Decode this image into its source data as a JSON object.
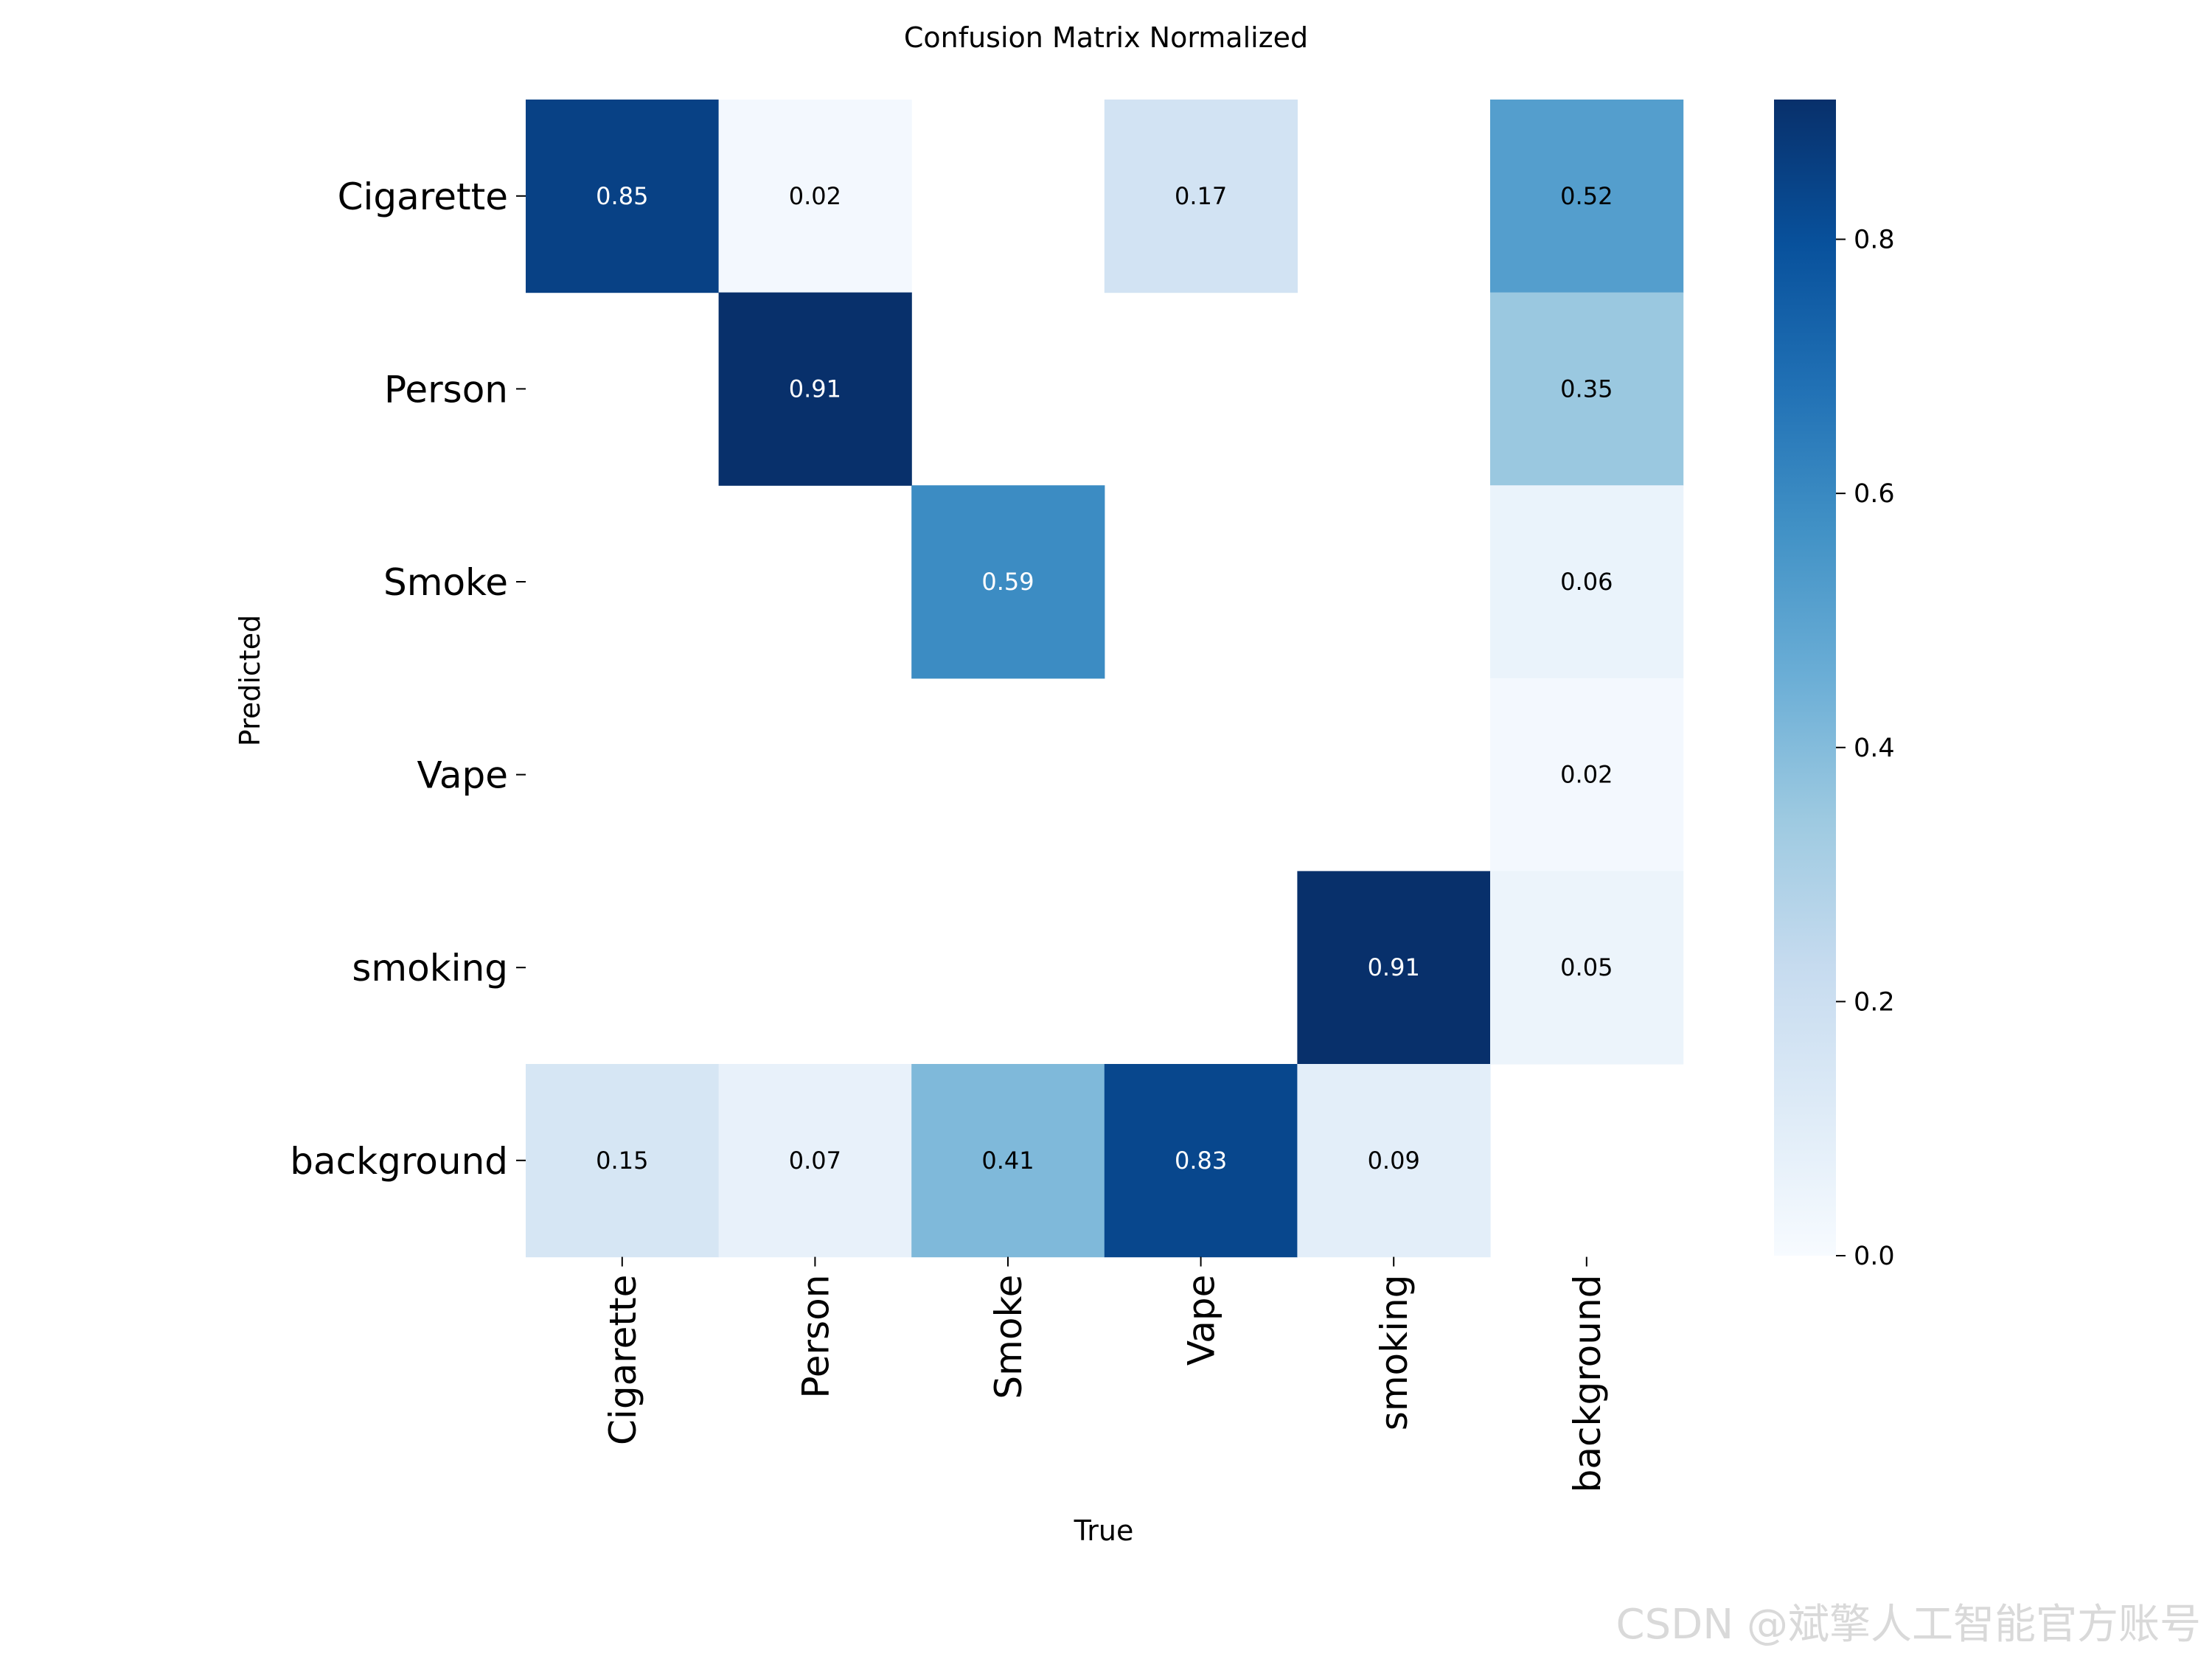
{
  "chart_data": {
    "type": "heatmap",
    "title": "Confusion Matrix Normalized",
    "xlabel": "True",
    "ylabel": "Predicted",
    "x_categories": [
      "Cigarette",
      "Person",
      "Smoke",
      "Vape",
      "smoking",
      "background"
    ],
    "y_categories": [
      "Cigarette",
      "Person",
      "Smoke",
      "Vape",
      "smoking",
      "background"
    ],
    "values": [
      [
        0.85,
        0.02,
        null,
        0.17,
        null,
        0.52
      ],
      [
        null,
        0.91,
        null,
        null,
        null,
        0.35
      ],
      [
        null,
        null,
        0.59,
        null,
        null,
        0.06
      ],
      [
        null,
        null,
        null,
        null,
        null,
        0.02
      ],
      [
        null,
        null,
        null,
        null,
        0.91,
        0.05
      ],
      [
        0.15,
        0.07,
        0.41,
        0.83,
        0.09,
        null
      ]
    ],
    "value_labels": [
      [
        "0.85",
        "0.02",
        "",
        "0.17",
        "",
        "0.52"
      ],
      [
        "",
        "0.91",
        "",
        "",
        "",
        "0.35"
      ],
      [
        "",
        "",
        "0.59",
        "",
        "",
        "0.06"
      ],
      [
        "",
        "",
        "",
        "",
        "",
        "0.02"
      ],
      [
        "",
        "",
        "",
        "",
        "0.91",
        "0.05"
      ],
      [
        "0.15",
        "0.07",
        "0.41",
        "0.83",
        "0.09",
        ""
      ]
    ],
    "colormap": "Blues",
    "colorbar": {
      "range": [
        0.0,
        0.91
      ],
      "ticks": [
        0.0,
        0.2,
        0.4,
        0.6,
        0.8
      ],
      "tick_labels": [
        "0.0",
        "0.2",
        "0.4",
        "0.6",
        "0.8"
      ]
    }
  },
  "watermark": "CSDN @斌擎人工智能官方账号"
}
